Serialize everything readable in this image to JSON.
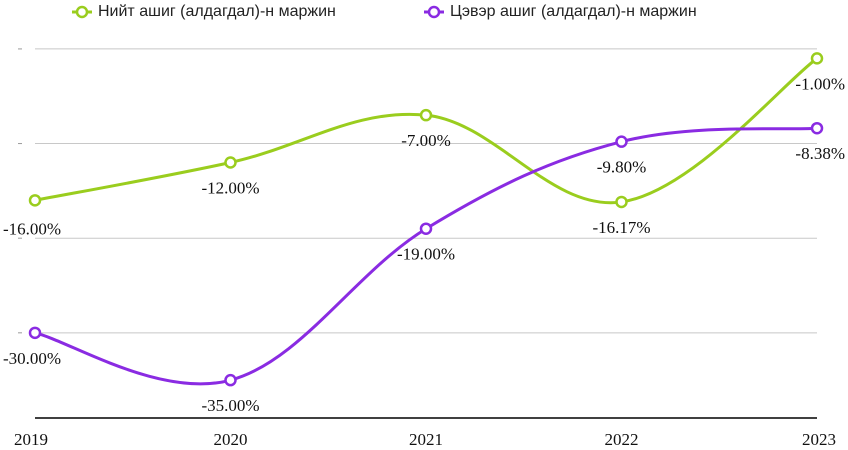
{
  "chart_data": {
    "type": "line",
    "categories": [
      "2019",
      "2020",
      "2021",
      "2022",
      "2023"
    ],
    "series": [
      {
        "name": "Нийт ашиг (алдагдал)-н маржин",
        "color": "#9ACD1E",
        "values": [
          -16.0,
          -12.0,
          -7.0,
          -16.17,
          -1.0
        ],
        "labels": [
          "-16.00%",
          "-12.00%",
          "-7.00%",
          "-16.17%",
          "-1.00%"
        ]
      },
      {
        "name": "Цэвэр ашиг (алдагдал)-н маржин",
        "color": "#8A2BE2",
        "values": [
          -30.0,
          -35.0,
          -19.0,
          -9.8,
          -8.38
        ],
        "labels": [
          "-30.00%",
          "-35.00%",
          "-19.00%",
          "-9.80%",
          "-8.38%"
        ]
      }
    ],
    "ylim": [
      -39.0,
      2.0
    ],
    "gridlines": [
      0,
      -10,
      -20,
      -30
    ],
    "grid": true,
    "legend_position": "top",
    "title": "",
    "xlabel": "",
    "ylabel": ""
  }
}
